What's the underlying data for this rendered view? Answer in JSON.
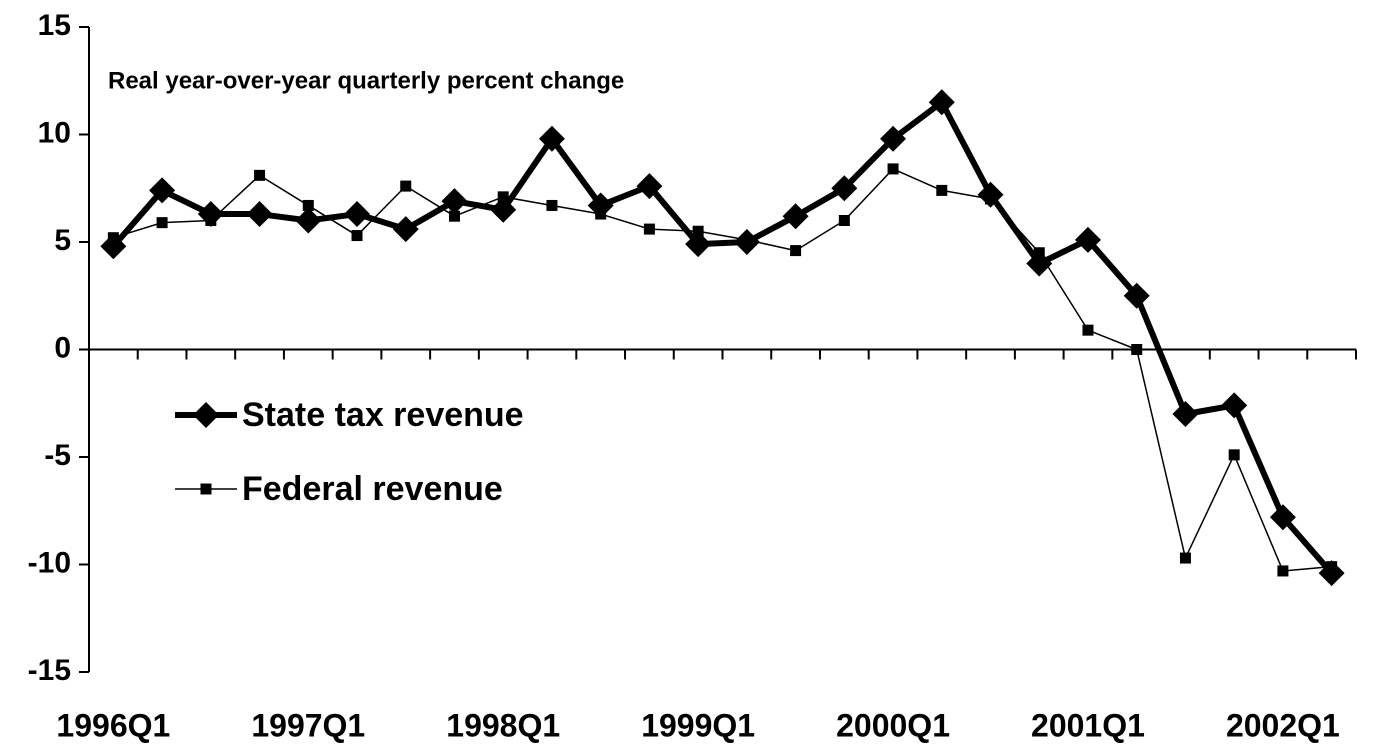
{
  "chart_data": {
    "type": "line",
    "annotation": "Real year-over-year quarterly percent change",
    "categories": [
      "1996Q1",
      null,
      null,
      null,
      "1997Q1",
      null,
      null,
      null,
      "1998Q1",
      null,
      null,
      null,
      "1999Q1",
      null,
      null,
      null,
      "2000Q1",
      null,
      null,
      null,
      "2001Q1",
      null,
      null,
      null,
      "2002Q1",
      null
    ],
    "series": [
      {
        "name": "State tax revenue",
        "color": "#000000",
        "marker": "diamond",
        "values": [
          4.8,
          7.4,
          6.3,
          6.3,
          6.0,
          6.3,
          5.6,
          6.9,
          6.5,
          9.8,
          6.7,
          7.6,
          4.9,
          5.0,
          6.2,
          7.5,
          9.8,
          11.5,
          7.2,
          4.0,
          5.1,
          2.5,
          -3.0,
          -2.6,
          -7.8,
          -10.4
        ]
      },
      {
        "name": "Federal revenue",
        "color": "#000000",
        "marker": "square",
        "values": [
          5.2,
          5.9,
          6.0,
          8.1,
          6.7,
          5.3,
          7.6,
          6.2,
          7.1,
          6.7,
          6.3,
          5.6,
          5.5,
          5.1,
          4.6,
          6.0,
          8.4,
          7.4,
          7.0,
          4.5,
          0.9,
          0,
          -9.7,
          -4.9,
          -10.3,
          -10.1
        ]
      }
    ],
    "ylim": [
      -15,
      15
    ],
    "yticks": [
      -15,
      -10,
      -5,
      0,
      5,
      10,
      15
    ],
    "grid": false,
    "legend": "left"
  }
}
